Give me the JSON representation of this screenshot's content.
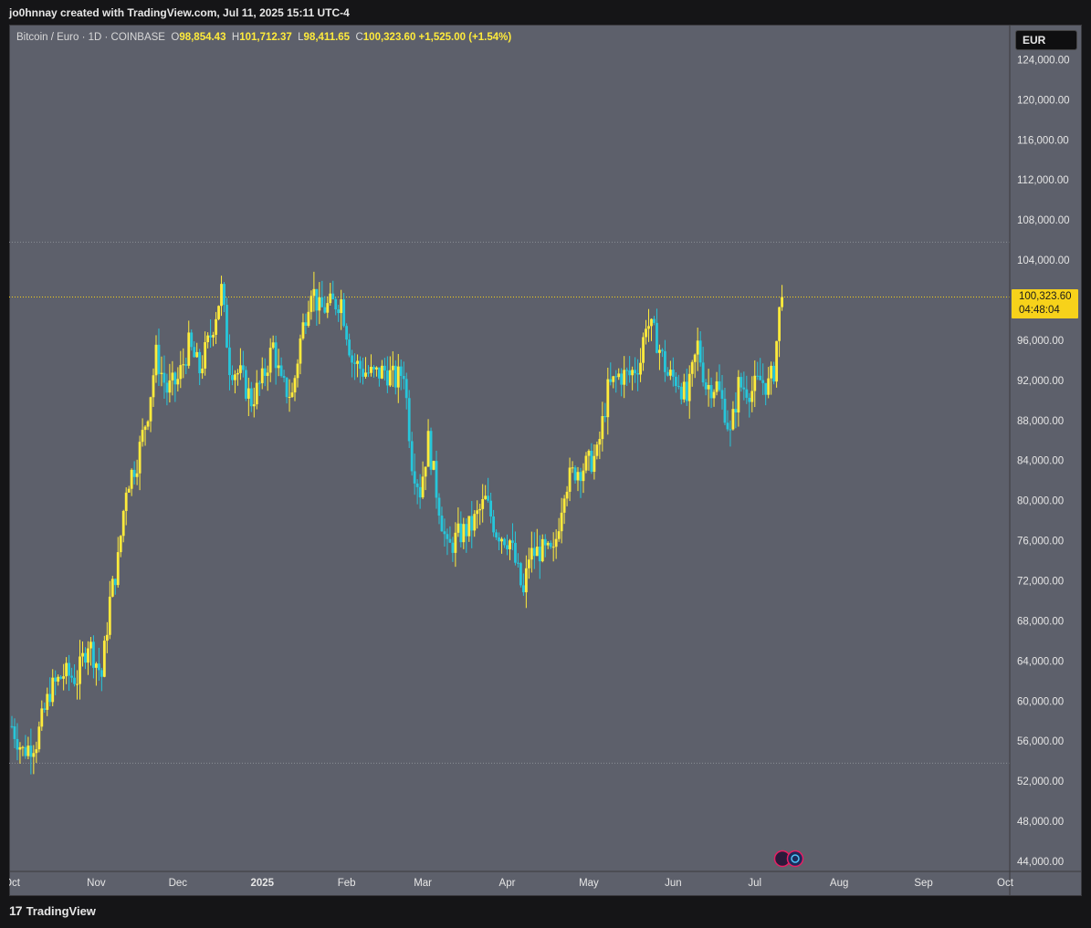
{
  "header": {
    "attribution": "jo0hnnay created with TradingView.com, Jul 11, 2025 15:11 UTC-4"
  },
  "legend": {
    "symbol": "Bitcoin / Euro · 1D · COINBASE",
    "o_label": "O",
    "o_value": "98,854.43",
    "h_label": "H",
    "h_value": "101,712.37",
    "l_label": "L",
    "l_value": "98,411.65",
    "c_label": "C",
    "c_value": "100,323.60",
    "change": "+1,525.00 (+1.54%)"
  },
  "currency": "EUR",
  "price_tag": {
    "price": "100,323.60",
    "countdown": "04:48:04"
  },
  "footer": {
    "brand": "TradingView"
  },
  "colors": {
    "background": "#5d606b",
    "up": "#ffeb3b",
    "down": "#26c6da",
    "price_line": "#f7d21a"
  },
  "chart_data": {
    "type": "candlestick",
    "y_axis_labels": [
      "124,000.00",
      "120,000.00",
      "116,000.00",
      "112,000.00",
      "108,000.00",
      "104,000.00",
      "100,000.00",
      "96,000.00",
      "92,000.00",
      "88,000.00",
      "84,000.00",
      "80,000.00",
      "76,000.00",
      "72,000.00",
      "68,000.00",
      "64,000.00",
      "60,000.00",
      "56,000.00",
      "52,000.00",
      "48,000.00",
      "44,000.00"
    ],
    "y_ticks": [
      124000,
      120000,
      116000,
      112000,
      108000,
      104000,
      100000,
      96000,
      92000,
      88000,
      84000,
      80000,
      76000,
      72000,
      68000,
      64000,
      60000,
      56000,
      52000,
      48000,
      44000
    ],
    "ylim": [
      43000,
      127500
    ],
    "x_axis_labels": [
      "Oct",
      "Nov",
      "Dec",
      "2025",
      "Feb",
      "Mar",
      "Apr",
      "May",
      "Jun",
      "Jul",
      "Aug",
      "Sep",
      "Oct"
    ],
    "x_axis_dates": [
      "2024-10-01",
      "2024-11-01",
      "2024-12-01",
      "2025-01-01",
      "2025-02-01",
      "2025-03-01",
      "2025-04-01",
      "2025-05-01",
      "2025-06-01",
      "2025-07-01",
      "2025-08-01",
      "2025-09-01",
      "2025-10-01"
    ],
    "range_high": 105800,
    "range_low": 53800,
    "last_price": 100323.6,
    "close_path": [
      [
        "2024-10-01",
        57500
      ],
      [
        "2024-10-05",
        55000
      ],
      [
        "2024-10-10",
        56000
      ],
      [
        "2024-10-15",
        61000
      ],
      [
        "2024-10-20",
        62700
      ],
      [
        "2024-10-25",
        62300
      ],
      [
        "2024-10-29",
        66000
      ],
      [
        "2024-11-03",
        62500
      ],
      [
        "2024-11-06",
        70000
      ],
      [
        "2024-11-09",
        74000
      ],
      [
        "2024-11-12",
        81500
      ],
      [
        "2024-11-16",
        84000
      ],
      [
        "2024-11-20",
        89000
      ],
      [
        "2024-11-23",
        94500
      ],
      [
        "2024-11-27",
        91000
      ],
      [
        "2024-12-01",
        92000
      ],
      [
        "2024-12-05",
        95500
      ],
      [
        "2024-12-09",
        93000
      ],
      [
        "2024-12-13",
        96500
      ],
      [
        "2024-12-17",
        101000
      ],
      [
        "2024-12-20",
        93500
      ],
      [
        "2024-12-24",
        92500
      ],
      [
        "2024-12-28",
        90000
      ],
      [
        "2025-01-01",
        92000
      ],
      [
        "2025-01-05",
        95500
      ],
      [
        "2025-01-08",
        91500
      ],
      [
        "2025-01-12",
        90500
      ],
      [
        "2025-01-15",
        96000
      ],
      [
        "2025-01-19",
        101500
      ],
      [
        "2025-01-22",
        99000
      ],
      [
        "2025-01-26",
        99500
      ],
      [
        "2025-01-30",
        100000
      ],
      [
        "2025-02-03",
        94000
      ],
      [
        "2025-02-07",
        93000
      ],
      [
        "2025-02-11",
        92500
      ],
      [
        "2025-02-15",
        93000
      ],
      [
        "2025-02-19",
        92000
      ],
      [
        "2025-02-22",
        93000
      ],
      [
        "2025-02-25",
        84000
      ],
      [
        "2025-02-28",
        81000
      ],
      [
        "2025-03-03",
        86000
      ],
      [
        "2025-03-06",
        81000
      ],
      [
        "2025-03-10",
        75000
      ],
      [
        "2025-03-14",
        76500
      ],
      [
        "2025-03-19",
        77500
      ],
      [
        "2025-03-24",
        80000
      ],
      [
        "2025-03-28",
        77000
      ],
      [
        "2025-04-02",
        76000
      ],
      [
        "2025-04-07",
        70500
      ],
      [
        "2025-04-09",
        74500
      ],
      [
        "2025-04-13",
        75000
      ],
      [
        "2025-04-18",
        74500
      ],
      [
        "2025-04-22",
        81500
      ],
      [
        "2025-04-26",
        83000
      ],
      [
        "2025-04-30",
        83500
      ],
      [
        "2025-05-04",
        84500
      ],
      [
        "2025-05-08",
        91000
      ],
      [
        "2025-05-12",
        92500
      ],
      [
        "2025-05-16",
        92500
      ],
      [
        "2025-05-20",
        94000
      ],
      [
        "2025-05-22",
        98000
      ],
      [
        "2025-05-26",
        96000
      ],
      [
        "2025-05-30",
        92500
      ],
      [
        "2025-06-03",
        92000
      ],
      [
        "2025-06-06",
        90000
      ],
      [
        "2025-06-10",
        95500
      ],
      [
        "2025-06-13",
        91500
      ],
      [
        "2025-06-17",
        91500
      ],
      [
        "2025-06-20",
        89000
      ],
      [
        "2025-06-22",
        86500
      ],
      [
        "2025-06-25",
        91500
      ],
      [
        "2025-06-30",
        91000
      ],
      [
        "2025-07-03",
        92000
      ],
      [
        "2025-07-06",
        91500
      ],
      [
        "2025-07-08",
        93000
      ],
      [
        "2025-07-10",
        98800
      ],
      [
        "2025-07-11",
        100323.6
      ]
    ]
  }
}
